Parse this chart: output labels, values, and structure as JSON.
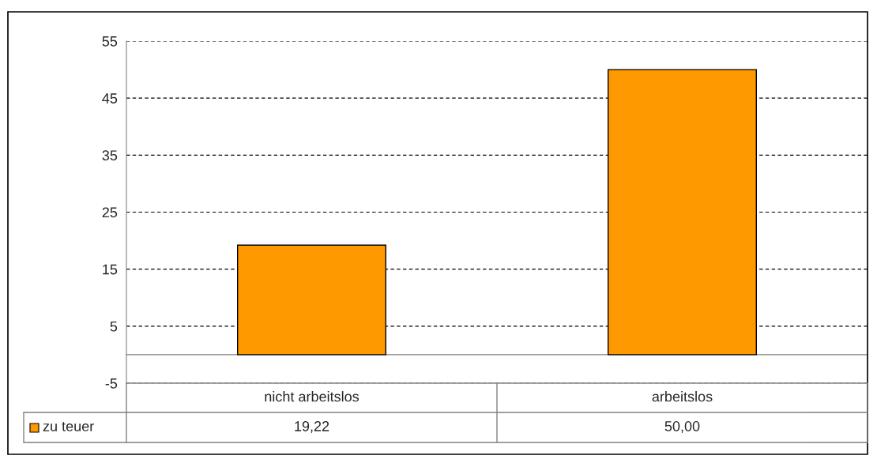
{
  "chart_data": {
    "type": "bar",
    "categories": [
      "nicht arbeitslos",
      "arbeitslos"
    ],
    "series": [
      {
        "name": "zu teuer",
        "color": "#ff9900",
        "values": [
          19.22,
          50.0
        ],
        "value_labels": [
          "19,22",
          "50,00"
        ]
      }
    ],
    "ylim": [
      -5,
      55
    ],
    "yticks": [
      -5,
      5,
      15,
      25,
      35,
      45,
      55
    ],
    "grid": "y",
    "legend": "bottom"
  }
}
